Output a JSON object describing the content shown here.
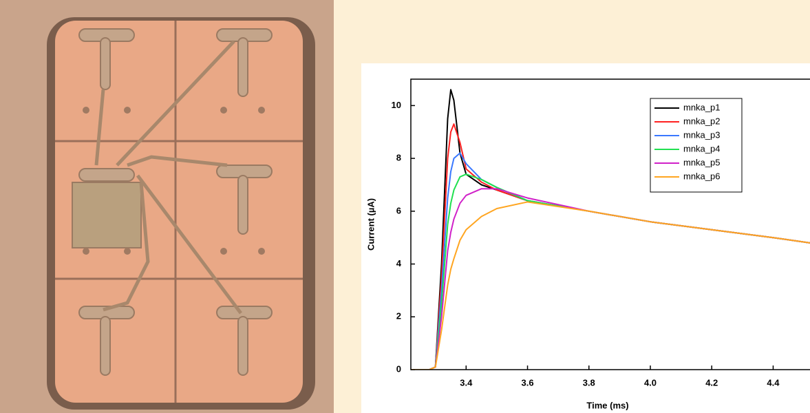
{
  "chart_data": {
    "type": "line",
    "x_label": "Time (ms)",
    "y_label": "Current (µA)",
    "x": [
      3.22,
      3.28,
      3.3,
      3.32,
      3.34,
      3.35,
      3.36,
      3.38,
      3.4,
      3.45,
      3.5,
      3.6,
      3.8,
      4.0,
      4.2,
      4.4,
      4.52
    ],
    "series": [
      {
        "name": "mnka_p1",
        "color": "#000000",
        "values": [
          0,
          0,
          0.1,
          4,
          9.5,
          10.6,
          10.2,
          8.2,
          7.4,
          7.0,
          6.8,
          6.4,
          6.0,
          5.6,
          5.3,
          5.0,
          4.8
        ]
      },
      {
        "name": "mnka_p2",
        "color": "#ff2020",
        "values": [
          0,
          0,
          0.1,
          3.5,
          8,
          9.0,
          9.3,
          8.6,
          7.6,
          7.1,
          6.8,
          6.4,
          6.0,
          5.6,
          5.3,
          5.0,
          4.8
        ]
      },
      {
        "name": "mnka_p3",
        "color": "#3a78ff",
        "values": [
          0,
          0,
          0.1,
          3,
          6.5,
          7.5,
          8.0,
          8.2,
          7.8,
          7.2,
          6.9,
          6.4,
          6.0,
          5.6,
          5.3,
          5.0,
          4.8
        ]
      },
      {
        "name": "mnka_p4",
        "color": "#20e050",
        "values": [
          0,
          0,
          0.1,
          2.5,
          5.5,
          6.3,
          6.8,
          7.3,
          7.4,
          7.2,
          6.9,
          6.4,
          6.0,
          5.6,
          5.3,
          5.0,
          4.8
        ]
      },
      {
        "name": "mnka_p5",
        "color": "#d020c8",
        "values": [
          0,
          0,
          0.1,
          2,
          4.5,
          5.2,
          5.7,
          6.3,
          6.6,
          6.85,
          6.85,
          6.5,
          6.0,
          5.6,
          5.3,
          5.0,
          4.8
        ]
      },
      {
        "name": "mnka_p6",
        "color": "#ffa520",
        "values": [
          0,
          0,
          0.1,
          1.5,
          3.2,
          3.8,
          4.2,
          4.9,
          5.3,
          5.8,
          6.1,
          6.35,
          6.0,
          5.6,
          5.3,
          5.0,
          4.8
        ]
      }
    ],
    "xlim": [
      3.22,
      4.52
    ],
    "ylim": [
      0,
      11
    ],
    "xticks": [
      3.4,
      3.6,
      3.8,
      {
        "value": 4,
        "label": "4.0"
      },
      4.2,
      4.4
    ],
    "yticks": [
      0,
      2,
      4,
      6,
      8,
      10
    ],
    "legend": "upper right"
  }
}
